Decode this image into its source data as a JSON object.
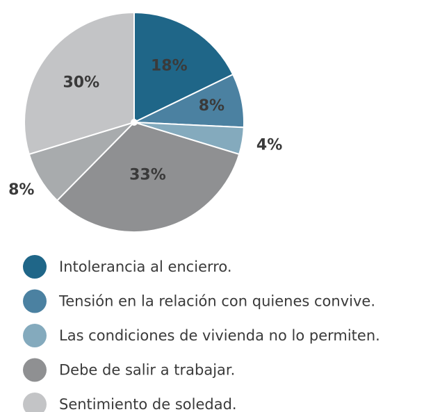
{
  "chart_data": {
    "type": "pie",
    "categories": [
      "Intolerancia al encierro.",
      "Tensión en la relación con quienes convive.",
      "Las condiciones de vivienda no lo permiten.",
      "Debe de salir a trabajar.",
      null,
      "Sentimiento de soledad."
    ],
    "values": [
      18,
      8,
      4,
      33,
      8,
      30
    ],
    "value_labels": [
      "18%",
      "8%",
      "4%",
      "33%",
      "8%",
      "30%"
    ],
    "colors": [
      "#1f6688",
      "#4b81a1",
      "#84aabd",
      "#8f9092",
      "#a8abad",
      "#c3c4c6"
    ]
  }
}
